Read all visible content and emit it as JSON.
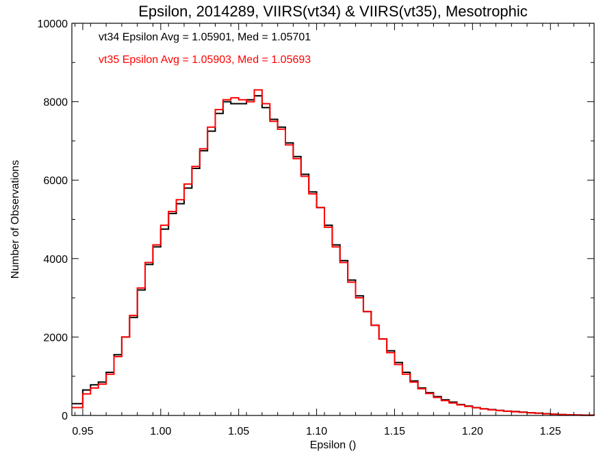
{
  "chart_data": {
    "type": "line",
    "step": true,
    "title": "Epsilon, 2014289, VIIRS(vt34) & VIIRS(vt35), Mesotrophic",
    "xlabel": "Epsilon ()",
    "ylabel": "Number of Observations",
    "xlim": [
      0.943,
      1.278
    ],
    "ylim": [
      0,
      10000
    ],
    "x_ticks": [
      0.95,
      1.0,
      1.05,
      1.1,
      1.15,
      1.2,
      1.25
    ],
    "x_tick_labels": [
      "0.95",
      "1.00",
      "1.05",
      "1.10",
      "1.15",
      "1.20",
      "1.25"
    ],
    "y_ticks": [
      0,
      2000,
      4000,
      6000,
      8000,
      10000
    ],
    "y_tick_labels": [
      "0",
      "2000",
      "4000",
      "6000",
      "8000",
      "10000"
    ],
    "grid": false,
    "annotations": [
      {
        "text": "vt34 Epsilon Avg = 1.05901, Med = 1.05701",
        "color": "#000000"
      },
      {
        "text": "vt35 Epsilon Avg = 1.05903, Med = 1.05693",
        "color": "#ff0000"
      }
    ],
    "series": [
      {
        "color": "#000000",
        "x": [
          0.943,
          0.95,
          0.955,
          0.96,
          0.965,
          0.97,
          0.975,
          0.98,
          0.985,
          0.99,
          0.995,
          1.0,
          1.005,
          1.01,
          1.015,
          1.02,
          1.025,
          1.03,
          1.035,
          1.04,
          1.045,
          1.05,
          1.055,
          1.06,
          1.065,
          1.07,
          1.075,
          1.08,
          1.085,
          1.09,
          1.095,
          1.1,
          1.105,
          1.11,
          1.115,
          1.12,
          1.125,
          1.13,
          1.135,
          1.14,
          1.145,
          1.15,
          1.155,
          1.16,
          1.165,
          1.17,
          1.175,
          1.18,
          1.185,
          1.19,
          1.195,
          1.2,
          1.205,
          1.21,
          1.215,
          1.22,
          1.225,
          1.23,
          1.235,
          1.24,
          1.245,
          1.25,
          1.255,
          1.26,
          1.265,
          1.27,
          1.278
        ],
        "y": [
          300,
          650,
          780,
          850,
          1100,
          1550,
          2000,
          2500,
          3200,
          3850,
          4300,
          4750,
          5150,
          5400,
          5800,
          6300,
          6750,
          7250,
          7700,
          8000,
          7950,
          7950,
          8050,
          8150,
          7850,
          7550,
          7350,
          6950,
          6600,
          6150,
          5700,
          5300,
          4850,
          4350,
          3950,
          3450,
          3050,
          2650,
          2300,
          1950,
          1650,
          1350,
          1100,
          880,
          700,
          580,
          480,
          400,
          340,
          280,
          240,
          200,
          170,
          150,
          130,
          110,
          100,
          85,
          70,
          60,
          45,
          35,
          25,
          18,
          12,
          8,
          5
        ]
      },
      {
        "color": "#ff0000",
        "x": [
          0.943,
          0.95,
          0.955,
          0.96,
          0.965,
          0.97,
          0.975,
          0.98,
          0.985,
          0.99,
          0.995,
          1.0,
          1.005,
          1.01,
          1.015,
          1.02,
          1.025,
          1.03,
          1.035,
          1.04,
          1.045,
          1.05,
          1.055,
          1.06,
          1.065,
          1.07,
          1.075,
          1.08,
          1.085,
          1.09,
          1.095,
          1.1,
          1.105,
          1.11,
          1.115,
          1.12,
          1.125,
          1.13,
          1.135,
          1.14,
          1.145,
          1.15,
          1.155,
          1.16,
          1.165,
          1.17,
          1.175,
          1.18,
          1.185,
          1.19,
          1.195,
          1.2,
          1.205,
          1.21,
          1.215,
          1.22,
          1.225,
          1.23,
          1.235,
          1.24,
          1.245,
          1.25,
          1.255,
          1.26,
          1.265,
          1.27,
          1.278
        ],
        "y": [
          200,
          550,
          700,
          800,
          1050,
          1500,
          2000,
          2550,
          3250,
          3900,
          4350,
          4850,
          5200,
          5500,
          5900,
          6350,
          6800,
          7350,
          7800,
          8050,
          8100,
          8050,
          8000,
          8300,
          7950,
          7500,
          7300,
          6900,
          6550,
          6100,
          5650,
          5300,
          4800,
          4300,
          3900,
          3400,
          3000,
          2650,
          2300,
          1950,
          1600,
          1300,
          1050,
          850,
          680,
          560,
          460,
          380,
          320,
          270,
          230,
          195,
          165,
          145,
          125,
          108,
          95,
          80,
          65,
          55,
          42,
          32,
          22,
          15,
          10,
          6,
          3
        ]
      }
    ]
  }
}
